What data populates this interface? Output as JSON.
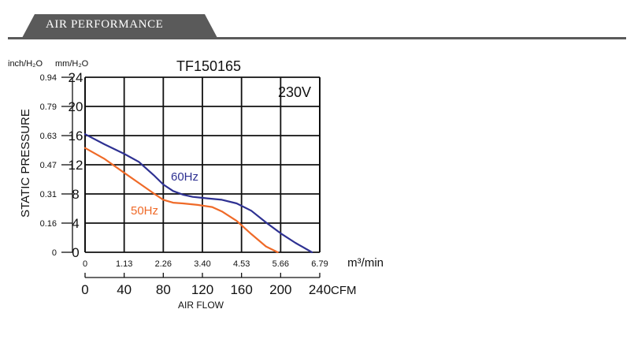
{
  "header": {
    "title": "AIR PERFORMANCE"
  },
  "chart_data": {
    "type": "line",
    "title": "TF150165",
    "voltage": "230V",
    "ylabel": "STATIC PRESSURE",
    "xlabel": "AIR FLOW",
    "y_units": {
      "inch": "inch/H₂O",
      "mm": "mm/H₂O"
    },
    "x_units": {
      "metric": "m³/min",
      "imperial": "CFM"
    },
    "ylim": [
      0,
      24
    ],
    "xlim": [
      0,
      240
    ],
    "grid": true,
    "y_ticks_mm": [
      "0",
      "4",
      "8",
      "12",
      "16",
      "20",
      "24"
    ],
    "y_ticks_inch": [
      "0",
      "0.16",
      "0.31",
      "0.47",
      "0.63",
      "0.79",
      "0.94"
    ],
    "x_ticks_m3": [
      "0",
      "1.13",
      "2.26",
      "3.40",
      "4.53",
      "5.66",
      "6.79"
    ],
    "x_ticks_cfm": [
      "0",
      "40",
      "80",
      "120",
      "160",
      "200",
      "240"
    ],
    "series": [
      {
        "name": "60Hz",
        "color": "#2e3192",
        "x": [
          0,
          20,
          40,
          55,
          70,
          80,
          90,
          100,
          110,
          125,
          140,
          155,
          170,
          185,
          200,
          215,
          232
        ],
        "y": [
          16.2,
          14.8,
          13.5,
          12.4,
          10.6,
          9.3,
          8.4,
          7.9,
          7.6,
          7.4,
          7.2,
          6.7,
          5.7,
          4.1,
          2.6,
          1.3,
          0
        ]
      },
      {
        "name": "50Hz",
        "color": "#ef6a28",
        "x": [
          0,
          20,
          40,
          55,
          70,
          80,
          90,
          100,
          115,
          130,
          140,
          155,
          170,
          185,
          197
        ],
        "y": [
          14.3,
          12.8,
          10.9,
          9.5,
          8.1,
          7.2,
          6.8,
          6.7,
          6.5,
          6.2,
          5.6,
          4.3,
          2.5,
          0.8,
          0
        ]
      }
    ]
  }
}
